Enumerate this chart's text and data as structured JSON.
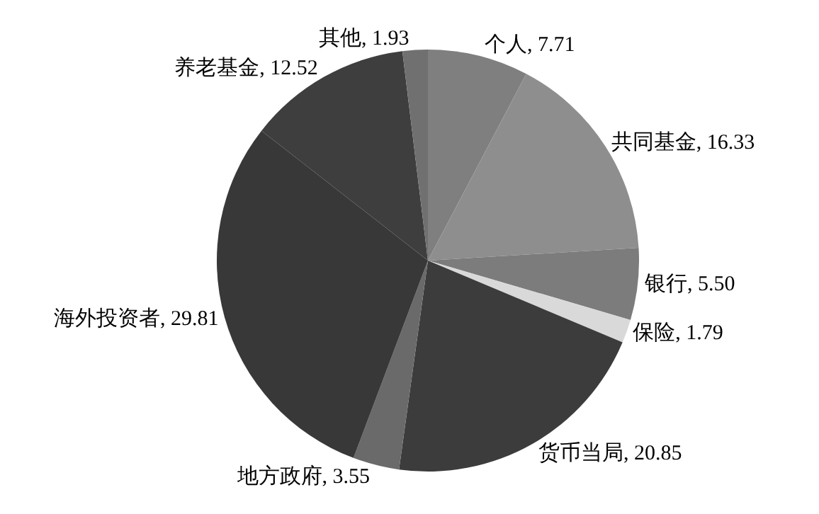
{
  "chart_data": {
    "type": "pie",
    "categories": [
      "个人",
      "共同基金",
      "银行",
      "保险",
      "货币当局",
      "地方政府",
      "海外投资者",
      "养老基金",
      "其他"
    ],
    "values": [
      7.71,
      16.33,
      5.5,
      1.79,
      20.85,
      3.55,
      29.81,
      12.52,
      1.93
    ],
    "value_labels": [
      "7.71",
      "16.33",
      "5.50",
      "1.79",
      "20.85",
      "3.55",
      "29.81",
      "12.52",
      "1.93"
    ],
    "colors": [
      "#7f7f7f",
      "#8e8e8e",
      "#7c7c7c",
      "#d9d9d9",
      "#3c3c3c",
      "#6a6a6a",
      "#383838",
      "#3e3e3e",
      "#707070"
    ],
    "legend": false
  }
}
